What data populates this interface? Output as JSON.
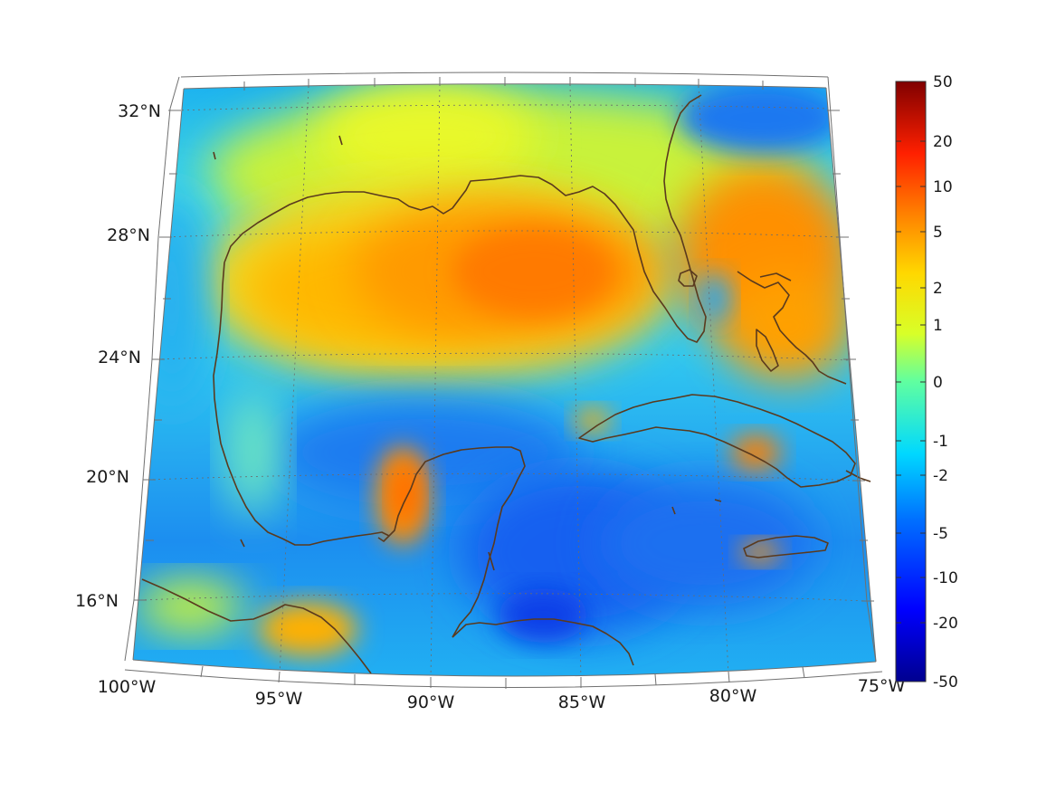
{
  "map": {
    "region": "Gulf of Mexico",
    "projection": "conic",
    "lon_range": [
      -100,
      -75
    ],
    "lat_range": [
      14,
      33
    ],
    "lat_labels": [
      {
        "value": 32,
        "text": "32°N"
      },
      {
        "value": 28,
        "text": "28°N"
      },
      {
        "value": 24,
        "text": "24°N"
      },
      {
        "value": 20,
        "text": "20°N"
      },
      {
        "value": 16,
        "text": "16°N"
      }
    ],
    "lon_labels": [
      {
        "value": -100,
        "text": "100°W"
      },
      {
        "value": -95,
        "text": "95°W"
      },
      {
        "value": -90,
        "text": "90°W"
      },
      {
        "value": -85,
        "text": "85°W"
      },
      {
        "value": -80,
        "text": "80°W"
      },
      {
        "value": -75,
        "text": "75°W"
      }
    ],
    "coastline_color": "#5a3a1e",
    "gridlines": "dotted"
  },
  "colorbar": {
    "colormap": "jet",
    "scale": "nonlinear",
    "min": -50,
    "max": 50,
    "ticks": [
      "50",
      "20",
      "10",
      "5",
      "2",
      "1",
      "0",
      "-1",
      "-2",
      "-5",
      "-10",
      "-20",
      "-50"
    ]
  }
}
